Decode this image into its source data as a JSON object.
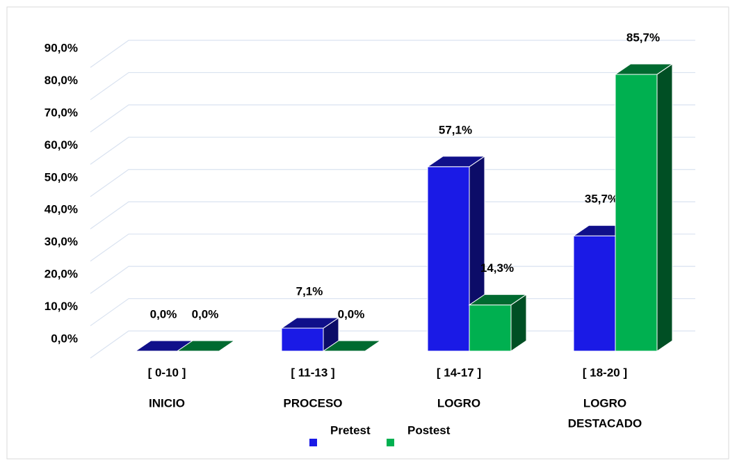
{
  "chart_data": {
    "type": "bar3d",
    "categories": [
      "[ 0-10 ]",
      "[ 11-13 ]",
      "[ 14-17 ]",
      "[ 18-20 ]"
    ],
    "category_groups": [
      "INICIO",
      "PROCESO",
      "LOGRO",
      "LOGRO DESTACADO"
    ],
    "series": [
      {
        "name": "Pretest",
        "color": "#1a1ae6",
        "values": [
          0,
          7.1,
          57.1,
          35.7
        ],
        "value_labels": [
          "0,0%",
          "7,1%",
          "57,1%",
          "35,7%"
        ]
      },
      {
        "name": "Postest",
        "color": "#00b050",
        "values": [
          0,
          0,
          14.3,
          85.7
        ],
        "value_labels": [
          "0,0%",
          "0,0%",
          "14,3%",
          "85,7%"
        ]
      }
    ],
    "ylim": [
      0,
      90
    ],
    "yticks": [
      {
        "value": 0,
        "label": "0,0%"
      },
      {
        "value": 10,
        "label": "10,0%"
      },
      {
        "value": 20,
        "label": "20,0%"
      },
      {
        "value": 30,
        "label": "30,0%"
      },
      {
        "value": 40,
        "label": "40,0%"
      },
      {
        "value": 50,
        "label": "50,0%"
      },
      {
        "value": 60,
        "label": "60,0%"
      },
      {
        "value": 70,
        "label": "70,0%"
      },
      {
        "value": 80,
        "label": "80,0%"
      },
      {
        "value": 90,
        "label": "90,0%"
      }
    ],
    "grid": true,
    "legend": "bottom"
  }
}
